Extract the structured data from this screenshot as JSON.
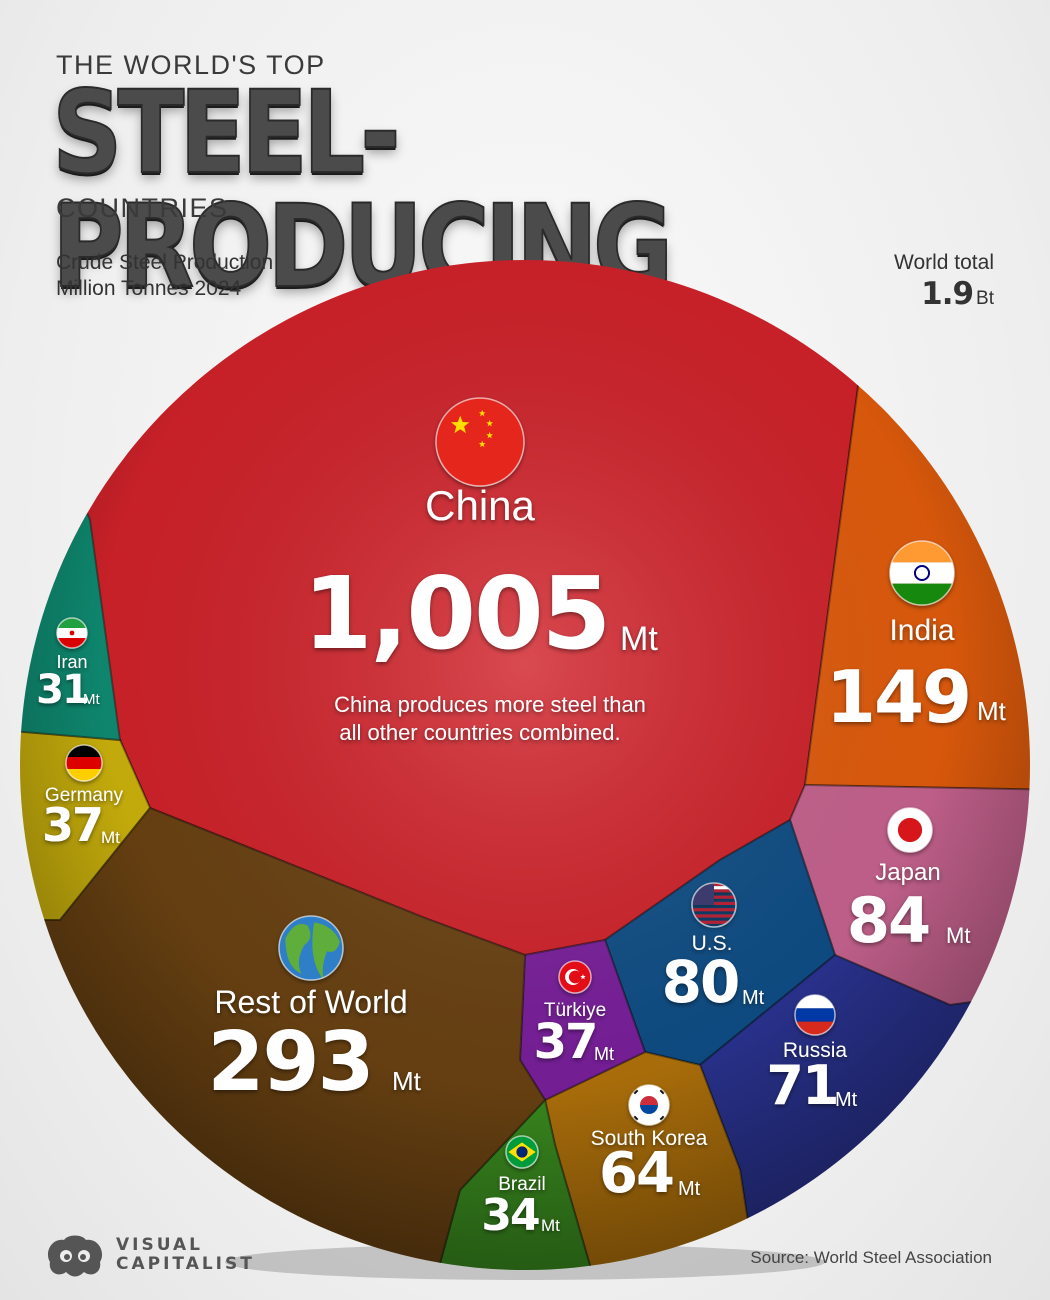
{
  "header": {
    "eyebrow": "THE WORLD'S TOP",
    "title": "STEEL-PRODUCING",
    "subtitle": "COUNTRIES",
    "caption_line1": "Crude Steel Production",
    "caption_line2": "Million Tonnes 2024",
    "total_label": "World total",
    "total_value": "1.9",
    "total_unit": "Bt"
  },
  "footer": {
    "logo_line1": "VISUAL",
    "logo_line2": "CAPITALIST",
    "source": "Source: World Steel Association"
  },
  "chart_data": {
    "type": "voronoi",
    "title": "THE WORLD'S TOP STEEL-PRODUCING COUNTRIES",
    "subtitle": "Crude Steel Production Million Tonnes 2024",
    "unit": "Mt",
    "annotation": "China produces more steel than all other countries combined.",
    "cells": [
      {
        "name": "China",
        "display": "1,005",
        "value": 1005,
        "color": "#d1222a",
        "flag": "china-flag"
      },
      {
        "name": "India",
        "display": "149",
        "value": 149,
        "color": "#e25c0c",
        "flag": "india-flag"
      },
      {
        "name": "Japan",
        "display": "84",
        "value": 84,
        "color": "#c7638f",
        "flag": "japan-flag"
      },
      {
        "name": "U.S.",
        "display": "80",
        "value": 80,
        "color": "#0f4e86",
        "flag": "us-flag"
      },
      {
        "name": "Russia",
        "display": "71",
        "value": 71,
        "color": "#2a3391",
        "flag": "russia-flag"
      },
      {
        "name": "South Korea",
        "display": "64",
        "value": 64,
        "color": "#b1720b",
        "flag": "south-korea-flag"
      },
      {
        "name": "Türkiye",
        "display": "37",
        "value": 37,
        "color": "#7a1f9c",
        "flag": "turkiye-flag"
      },
      {
        "name": "Brazil",
        "display": "34",
        "value": 34,
        "color": "#3a8c1f",
        "flag": "brazil-flag"
      },
      {
        "name": "Germany",
        "display": "37",
        "value": 37,
        "color": "#cdb30c",
        "flag": "germany-flag"
      },
      {
        "name": "Iran",
        "display": "31",
        "value": 31,
        "color": "#0f8c72",
        "flag": "iran-flag"
      },
      {
        "name": "Rest of World",
        "display": "293",
        "value": 293,
        "color": "#6a4212",
        "flag": "globe-icon"
      }
    ]
  }
}
